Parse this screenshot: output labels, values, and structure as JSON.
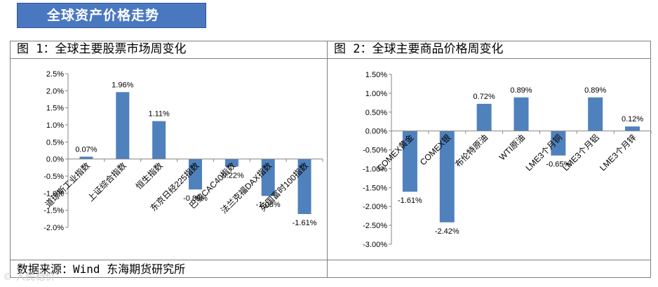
{
  "banner": {
    "title": "全球资产价格走势"
  },
  "source": "数据来源：Wind 东海期货研究所",
  "watermark": "© 人民稳价",
  "chart_data": [
    {
      "type": "bar",
      "title": "图 1：全球主要股票市场周变化",
      "categories": [
        "道琼斯工业指数",
        "上证综合指数",
        "恒生指数",
        "东京日经225指数",
        "巴黎CAC40指数",
        "法兰克福DAX指数",
        "英国富时100指数"
      ],
      "values": [
        0.07,
        1.96,
        1.11,
        -0.89,
        -0.22,
        -1.08,
        -1.61
      ],
      "data_labels": [
        "0.07%",
        "1.96%",
        "1.11%",
        "-0.89%",
        "-0.22%",
        "-1.08%",
        "-1.61%"
      ],
      "y_ticks": [
        "2.5%",
        "2.0%",
        "1.5%",
        "1.0%",
        "0.5%",
        "0.0%",
        "-0.5%",
        "-1.0%",
        "-1.5%",
        "-2.0%"
      ],
      "ylim": [
        -2.0,
        2.5
      ],
      "color": "#4f81bd"
    },
    {
      "type": "bar",
      "title": "图 2：全球主要商品价格周变化",
      "categories": [
        "COMEX黄金",
        "COMEX银",
        "布伦特原油",
        "WTI原油",
        "LME3个月铜",
        "LME3个月铝",
        "LME3个月锌"
      ],
      "values": [
        -1.61,
        -2.42,
        0.72,
        0.89,
        -0.65,
        0.89,
        0.12
      ],
      "data_labels": [
        "-1.61%",
        "-2.42%",
        "0.72%",
        "0.89%",
        "-0.65%",
        "0.89%",
        "0.12%"
      ],
      "y_ticks": [
        "1.50%",
        "1.00%",
        "0.50%",
        "0.00%",
        "-0.50%",
        "-1.00%",
        "-1.50%",
        "-2.00%",
        "-2.50%",
        "-3.00%"
      ],
      "ylim": [
        -3.0,
        1.5
      ],
      "color": "#4f81bd"
    }
  ]
}
